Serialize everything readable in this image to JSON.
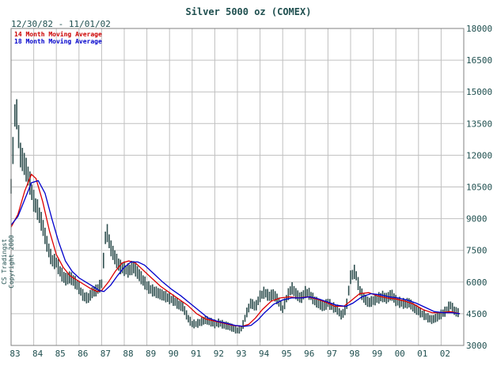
{
  "title": "Silver 5000 oz (COMEX)",
  "date_range": "12/30/82 - 11/01/02",
  "copyright": "CS Tradingst Copyright 2000",
  "colors": {
    "price_bars": "#2f4f4f",
    "ma14": "#dd0000",
    "ma18": "#0000cc",
    "grid": "#c0c0c0",
    "frame": "#808080",
    "text": "#1f4f4f"
  },
  "chart_data": {
    "type": "line",
    "title": "Silver 5000 oz (COMEX)",
    "subtitle": "12/30/82 - 11/01/02",
    "x_ticks": [
      "83",
      "84",
      "85",
      "86",
      "87",
      "88",
      "89",
      "90",
      "91",
      "92",
      "93",
      "94",
      "95",
      "96",
      "97",
      "98",
      "99",
      "00",
      "01",
      "02"
    ],
    "y_ticks": [
      3000,
      4500,
      6000,
      7500,
      9000,
      10500,
      12000,
      13500,
      15000,
      16500,
      18000
    ],
    "ylim": [
      3000,
      18000
    ],
    "xlim": [
      1983.0,
      2003.0
    ],
    "y_axis_side": "right",
    "grid": true,
    "legend_placement": "top-left",
    "series": [
      {
        "name": "14 Month Moving Average",
        "color": "#dd0000",
        "points": [
          [
            1983.0,
            8600
          ],
          [
            1983.3,
            9200
          ],
          [
            1983.6,
            10300
          ],
          [
            1983.9,
            11100
          ],
          [
            1984.1,
            10900
          ],
          [
            1984.4,
            9800
          ],
          [
            1984.7,
            8400
          ],
          [
            1985.0,
            7300
          ],
          [
            1985.3,
            6700
          ],
          [
            1985.6,
            6300
          ],
          [
            1985.9,
            6100
          ],
          [
            1986.2,
            5900
          ],
          [
            1986.5,
            5700
          ],
          [
            1986.8,
            5550
          ],
          [
            1987.0,
            5600
          ],
          [
            1987.3,
            6000
          ],
          [
            1987.6,
            6500
          ],
          [
            1987.9,
            6900
          ],
          [
            1988.2,
            7000
          ],
          [
            1988.5,
            6900
          ],
          [
            1988.8,
            6600
          ],
          [
            1989.2,
            6200
          ],
          [
            1989.6,
            5800
          ],
          [
            1990.0,
            5500
          ],
          [
            1990.4,
            5200
          ],
          [
            1990.8,
            4900
          ],
          [
            1991.2,
            4500
          ],
          [
            1991.6,
            4250
          ],
          [
            1992.0,
            4150
          ],
          [
            1992.4,
            4050
          ],
          [
            1992.8,
            3950
          ],
          [
            1993.2,
            3900
          ],
          [
            1993.5,
            4000
          ],
          [
            1993.8,
            4300
          ],
          [
            1994.1,
            4700
          ],
          [
            1994.5,
            5100
          ],
          [
            1994.9,
            5250
          ],
          [
            1995.3,
            5300
          ],
          [
            1995.7,
            5250
          ],
          [
            1996.1,
            5300
          ],
          [
            1996.5,
            5200
          ],
          [
            1996.9,
            5050
          ],
          [
            1997.3,
            4850
          ],
          [
            1997.7,
            4850
          ],
          [
            1998.0,
            5100
          ],
          [
            1998.4,
            5450
          ],
          [
            1998.8,
            5500
          ],
          [
            1999.2,
            5350
          ],
          [
            1999.6,
            5250
          ],
          [
            2000.0,
            5200
          ],
          [
            2000.4,
            5100
          ],
          [
            2000.8,
            4950
          ],
          [
            2001.2,
            4700
          ],
          [
            2001.6,
            4550
          ],
          [
            2002.0,
            4550
          ],
          [
            2002.4,
            4600
          ],
          [
            2002.83,
            4500
          ]
        ]
      },
      {
        "name": "18 Month Moving Average",
        "color": "#0000cc",
        "points": [
          [
            1983.0,
            8700
          ],
          [
            1983.3,
            9100
          ],
          [
            1983.6,
            9900
          ],
          [
            1983.9,
            10700
          ],
          [
            1984.2,
            10800
          ],
          [
            1984.5,
            10200
          ],
          [
            1984.8,
            9000
          ],
          [
            1985.1,
            7900
          ],
          [
            1985.4,
            7000
          ],
          [
            1985.7,
            6500
          ],
          [
            1986.0,
            6200
          ],
          [
            1986.3,
            6000
          ],
          [
            1986.6,
            5800
          ],
          [
            1986.9,
            5600
          ],
          [
            1987.1,
            5550
          ],
          [
            1987.4,
            5850
          ],
          [
            1987.7,
            6300
          ],
          [
            1988.0,
            6700
          ],
          [
            1988.3,
            6950
          ],
          [
            1988.6,
            6950
          ],
          [
            1988.9,
            6800
          ],
          [
            1989.3,
            6400
          ],
          [
            1989.7,
            6000
          ],
          [
            1990.1,
            5650
          ],
          [
            1990.5,
            5350
          ],
          [
            1990.9,
            5000
          ],
          [
            1991.3,
            4650
          ],
          [
            1991.7,
            4300
          ],
          [
            1992.1,
            4150
          ],
          [
            1992.5,
            4050
          ],
          [
            1992.9,
            3950
          ],
          [
            1993.3,
            3900
          ],
          [
            1993.6,
            3950
          ],
          [
            1993.9,
            4200
          ],
          [
            1994.2,
            4550
          ],
          [
            1994.6,
            4950
          ],
          [
            1995.0,
            5150
          ],
          [
            1995.4,
            5250
          ],
          [
            1995.8,
            5250
          ],
          [
            1996.2,
            5300
          ],
          [
            1996.6,
            5200
          ],
          [
            1997.0,
            5050
          ],
          [
            1997.4,
            4900
          ],
          [
            1997.8,
            4850
          ],
          [
            1998.1,
            5000
          ],
          [
            1998.5,
            5300
          ],
          [
            1998.9,
            5450
          ],
          [
            1999.3,
            5400
          ],
          [
            1999.7,
            5300
          ],
          [
            2000.1,
            5250
          ],
          [
            2000.5,
            5150
          ],
          [
            2000.9,
            5000
          ],
          [
            2001.3,
            4800
          ],
          [
            2001.7,
            4600
          ],
          [
            2002.1,
            4550
          ],
          [
            2002.5,
            4550
          ],
          [
            2002.83,
            4500
          ]
        ]
      },
      {
        "name": "",
        "kind": "price_bars",
        "color": "#2f4f4f",
        "points": [
          [
            1983.0,
            10500
          ],
          [
            1983.2,
            14500
          ],
          [
            1983.4,
            12000
          ],
          [
            1983.6,
            11500
          ],
          [
            1983.8,
            10800
          ],
          [
            1984.0,
            9800
          ],
          [
            1984.2,
            9300
          ],
          [
            1984.4,
            8600
          ],
          [
            1984.6,
            7700
          ],
          [
            1984.8,
            7000
          ],
          [
            1985.0,
            6900
          ],
          [
            1985.2,
            6400
          ],
          [
            1985.4,
            6100
          ],
          [
            1985.6,
            6200
          ],
          [
            1985.8,
            6000
          ],
          [
            1986.0,
            5700
          ],
          [
            1986.2,
            5300
          ],
          [
            1986.4,
            5200
          ],
          [
            1986.6,
            5500
          ],
          [
            1986.8,
            5600
          ],
          [
            1987.0,
            5900
          ],
          [
            1987.2,
            8500
          ],
          [
            1987.4,
            7600
          ],
          [
            1987.6,
            7100
          ],
          [
            1987.8,
            6700
          ],
          [
            1988.0,
            6600
          ],
          [
            1988.2,
            6500
          ],
          [
            1988.4,
            6700
          ],
          [
            1988.6,
            6400
          ],
          [
            1988.8,
            6100
          ],
          [
            1989.0,
            5800
          ],
          [
            1989.2,
            5600
          ],
          [
            1989.4,
            5500
          ],
          [
            1989.6,
            5400
          ],
          [
            1989.8,
            5300
          ],
          [
            1990.0,
            5200
          ],
          [
            1990.2,
            5100
          ],
          [
            1990.4,
            4900
          ],
          [
            1990.6,
            4800
          ],
          [
            1990.8,
            4300
          ],
          [
            1991.0,
            4000
          ],
          [
            1991.2,
            4000
          ],
          [
            1991.4,
            4100
          ],
          [
            1991.6,
            4200
          ],
          [
            1991.8,
            4100
          ],
          [
            1992.0,
            4000
          ],
          [
            1992.2,
            4050
          ],
          [
            1992.4,
            3950
          ],
          [
            1992.6,
            3900
          ],
          [
            1992.8,
            3800
          ],
          [
            1993.0,
            3700
          ],
          [
            1993.2,
            3800
          ],
          [
            1993.4,
            4500
          ],
          [
            1993.6,
            5000
          ],
          [
            1993.8,
            4800
          ],
          [
            1994.0,
            5300
          ],
          [
            1994.2,
            5500
          ],
          [
            1994.4,
            5300
          ],
          [
            1994.6,
            5400
          ],
          [
            1994.8,
            5100
          ],
          [
            1995.0,
            4700
          ],
          [
            1995.2,
            5300
          ],
          [
            1995.4,
            5700
          ],
          [
            1995.6,
            5400
          ],
          [
            1995.8,
            5200
          ],
          [
            1996.0,
            5500
          ],
          [
            1996.2,
            5400
          ],
          [
            1996.4,
            5100
          ],
          [
            1996.6,
            4950
          ],
          [
            1996.8,
            4800
          ],
          [
            1997.0,
            5000
          ],
          [
            1997.2,
            4800
          ],
          [
            1997.4,
            4700
          ],
          [
            1997.6,
            4400
          ],
          [
            1997.8,
            4700
          ],
          [
            1998.0,
            6200
          ],
          [
            1998.2,
            6500
          ],
          [
            1998.4,
            5600
          ],
          [
            1998.6,
            5200
          ],
          [
            1998.8,
            5000
          ],
          [
            1999.0,
            5100
          ],
          [
            1999.2,
            5200
          ],
          [
            1999.4,
            5300
          ],
          [
            1999.6,
            5200
          ],
          [
            1999.8,
            5400
          ],
          [
            2000.0,
            5100
          ],
          [
            2000.2,
            5000
          ],
          [
            2000.4,
            4950
          ],
          [
            2000.6,
            5000
          ],
          [
            2000.8,
            4750
          ],
          [
            2001.0,
            4600
          ],
          [
            2001.2,
            4450
          ],
          [
            2001.4,
            4300
          ],
          [
            2001.6,
            4200
          ],
          [
            2001.8,
            4300
          ],
          [
            2002.0,
            4450
          ],
          [
            2002.2,
            4600
          ],
          [
            2002.4,
            4900
          ],
          [
            2002.6,
            4600
          ],
          [
            2002.83,
            4500
          ]
        ]
      }
    ]
  }
}
